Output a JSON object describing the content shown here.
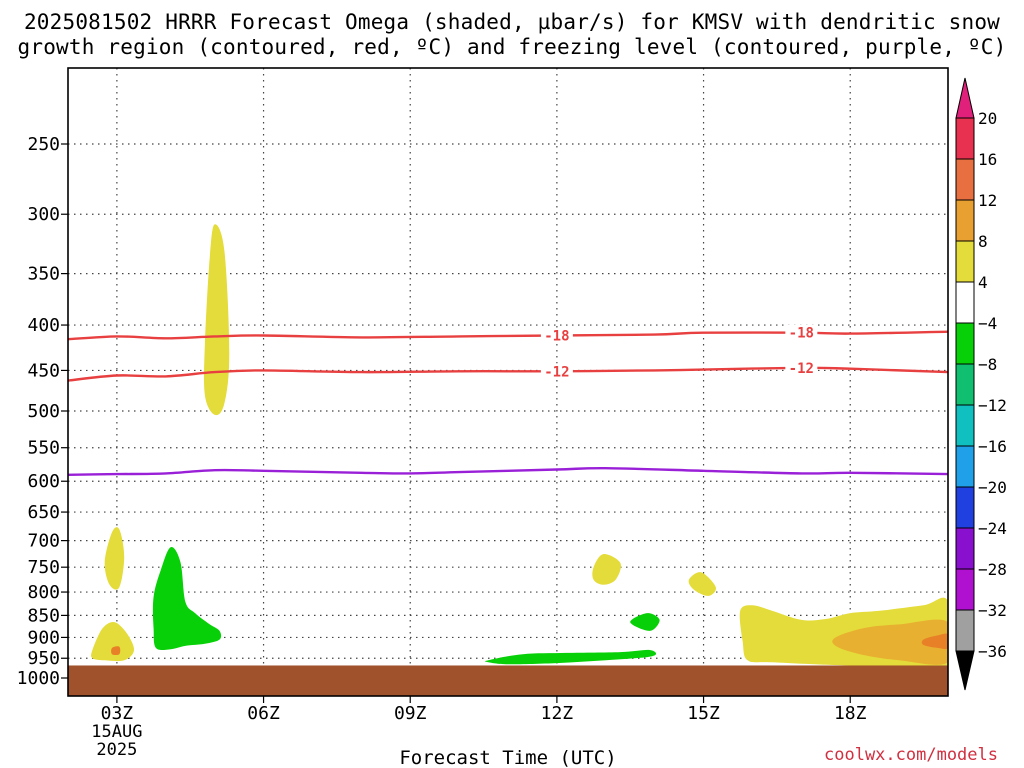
{
  "title": "2025081502 HRRR Forecast Omega (shaded, µbar/s) for KMSV with dendritic snow\ngrowth region (contoured, red, ºC) and freezing level (contoured, purple, ºC)",
  "credit": "coolwx.com/models",
  "chart_data": {
    "type": "time-height contour",
    "xlabel": "Forecast Time (UTC)",
    "x_ticks": [
      "03Z",
      "06Z",
      "09Z",
      "12Z",
      "15Z",
      "18Z"
    ],
    "x_tick_hours": [
      3,
      6,
      9,
      12,
      15,
      18
    ],
    "date_label": [
      "15AUG",
      "2025"
    ],
    "xlim": [
      2,
      20
    ],
    "y_ticks": [
      250,
      300,
      350,
      400,
      450,
      500,
      550,
      600,
      650,
      700,
      750,
      800,
      850,
      900,
      950,
      1000
    ],
    "ylim": [
      1020,
      200
    ],
    "y_scale": "log-pressure",
    "grid": "dotted",
    "contours": [
      {
        "name": "dendritic -18",
        "label": "-18",
        "color": "#e84040",
        "points": [
          [
            2,
            415
          ],
          [
            3,
            412
          ],
          [
            4,
            414
          ],
          [
            5,
            412
          ],
          [
            6,
            411
          ],
          [
            8,
            413
          ],
          [
            10,
            412
          ],
          [
            12,
            411
          ],
          [
            14,
            410
          ],
          [
            15,
            408
          ],
          [
            17,
            408
          ],
          [
            18,
            409
          ],
          [
            20,
            407
          ]
        ]
      },
      {
        "name": "dendritic -12",
        "label": "-12",
        "color": "#e84040",
        "points": [
          [
            2,
            462
          ],
          [
            3,
            456
          ],
          [
            4,
            457
          ],
          [
            5,
            452
          ],
          [
            6,
            450
          ],
          [
            8,
            452
          ],
          [
            10,
            451
          ],
          [
            12,
            451
          ],
          [
            14,
            450
          ],
          [
            15,
            449
          ],
          [
            17,
            447
          ],
          [
            18,
            448
          ],
          [
            20,
            452
          ]
        ]
      },
      {
        "name": "freezing level",
        "label": "",
        "color": "#9a20d8",
        "points": [
          [
            2,
            590
          ],
          [
            3,
            589
          ],
          [
            4,
            588
          ],
          [
            5,
            583
          ],
          [
            6,
            584
          ],
          [
            8,
            587
          ],
          [
            9,
            588
          ],
          [
            10,
            586
          ],
          [
            12,
            582
          ],
          [
            13,
            580
          ],
          [
            15,
            584
          ],
          [
            17,
            588
          ],
          [
            18,
            587
          ],
          [
            20,
            589
          ]
        ]
      }
    ],
    "contour_labels": [
      {
        "label": "-18",
        "x": 12.0,
        "p": 411
      },
      {
        "label": "-18",
        "x": 17.0,
        "p": 408
      },
      {
        "label": "-12",
        "x": 12.0,
        "p": 451
      },
      {
        "label": "-12",
        "x": 17.0,
        "p": 447
      }
    ],
    "omega_regions": [
      {
        "level": "4 to 8",
        "color": "#e4dc3a",
        "points": [
          [
            4.8,
            420
          ],
          [
            4.9,
            335
          ],
          [
            5.0,
            308
          ],
          [
            5.2,
            330
          ],
          [
            5.3,
            430
          ],
          [
            5.2,
            490
          ],
          [
            5.0,
            505
          ],
          [
            4.8,
            480
          ]
        ]
      },
      {
        "level": "4 to 8",
        "color": "#e4dc3a",
        "points": [
          [
            2.75,
            740
          ],
          [
            2.9,
            685
          ],
          [
            3.05,
            680
          ],
          [
            3.15,
            730
          ],
          [
            3.05,
            790
          ],
          [
            2.85,
            785
          ]
        ]
      },
      {
        "level": "4 to 8",
        "color": "#e4dc3a",
        "points": [
          [
            2.5,
            930
          ],
          [
            2.7,
            880
          ],
          [
            2.95,
            865
          ],
          [
            3.2,
            890
          ],
          [
            3.35,
            930
          ],
          [
            3.15,
            955
          ],
          [
            2.75,
            955
          ],
          [
            2.5,
            950
          ]
        ]
      },
      {
        "level": "4 to 8",
        "color": "#e4dc3a",
        "points": [
          [
            12.75,
            750
          ],
          [
            12.95,
            725
          ],
          [
            13.3,
            742
          ],
          [
            13.2,
            775
          ],
          [
            12.95,
            785
          ],
          [
            12.75,
            775
          ]
        ]
      },
      {
        "level": "4 to 8",
        "color": "#e4dc3a",
        "points": [
          [
            14.7,
            775
          ],
          [
            14.95,
            760
          ],
          [
            15.25,
            790
          ],
          [
            15.1,
            808
          ],
          [
            14.8,
            795
          ]
        ]
      },
      {
        "level": "4 to 8",
        "color": "#e4dc3a",
        "points": [
          [
            15.75,
            840
          ],
          [
            16.0,
            828
          ],
          [
            16.4,
            840
          ],
          [
            17.0,
            860
          ],
          [
            17.5,
            858
          ],
          [
            18.0,
            845
          ],
          [
            18.6,
            840
          ],
          [
            19.5,
            828
          ],
          [
            20,
            820
          ],
          [
            20,
            968
          ],
          [
            18.0,
            968
          ],
          [
            16.4,
            960
          ],
          [
            15.9,
            955
          ],
          [
            15.8,
            910
          ]
        ]
      },
      {
        "level": "8 to 12",
        "color": "#e8b030",
        "points": [
          [
            17.7,
            900
          ],
          [
            18.3,
            878
          ],
          [
            19.0,
            870
          ],
          [
            20,
            865
          ],
          [
            20,
            960
          ],
          [
            19.0,
            955
          ],
          [
            18.2,
            940
          ],
          [
            17.7,
            920
          ]
        ]
      },
      {
        "level": "12 to 16",
        "color": "#e88028",
        "points": [
          [
            19.5,
            905
          ],
          [
            19.8,
            895
          ],
          [
            20,
            893
          ],
          [
            20,
            925
          ],
          [
            19.8,
            925
          ],
          [
            19.5,
            918
          ]
        ]
      },
      {
        "level": "12 to 16",
        "color": "#e88028",
        "points": [
          [
            2.9,
            925
          ],
          [
            3.05,
            922
          ],
          [
            3.05,
            940
          ],
          [
            2.9,
            940
          ]
        ]
      },
      {
        "level": "-8 to -4",
        "color": "#08d008",
        "points": [
          [
            3.75,
            810
          ],
          [
            3.9,
            755
          ],
          [
            4.1,
            712
          ],
          [
            4.3,
            740
          ],
          [
            4.4,
            820
          ],
          [
            4.6,
            845
          ],
          [
            4.9,
            870
          ],
          [
            5.1,
            885
          ],
          [
            5.1,
            905
          ],
          [
            4.8,
            915
          ],
          [
            4.4,
            920
          ],
          [
            4.1,
            928
          ],
          [
            3.8,
            925
          ],
          [
            3.75,
            880
          ]
        ]
      },
      {
        "level": "-8 to -4",
        "color": "#08d008",
        "points": [
          [
            13.5,
            865
          ],
          [
            13.85,
            845
          ],
          [
            14.1,
            860
          ],
          [
            13.9,
            885
          ]
        ]
      },
      {
        "level": "-8 to -4",
        "color": "#08d008",
        "points": [
          [
            10.6,
            955
          ],
          [
            11.3,
            940
          ],
          [
            12.2,
            937
          ],
          [
            13.3,
            935
          ],
          [
            13.9,
            930
          ],
          [
            13.95,
            945
          ],
          [
            13.0,
            955
          ],
          [
            12.0,
            962
          ],
          [
            11.0,
            965
          ],
          [
            10.6,
            960
          ]
        ]
      }
    ],
    "ground": {
      "color": "#a0522d",
      "top_p": 968
    },
    "colorbar": {
      "ticks": [
        "20",
        "16",
        "12",
        "8",
        "4",
        "−4",
        "−8",
        "−12",
        "−16",
        "−20",
        "−24",
        "−28",
        "−32",
        "−36"
      ],
      "bands": [
        "#e83050",
        "#e87040",
        "#e8a030",
        "#e4dc3a",
        "#ffffff",
        "#08d008",
        "#10c070",
        "#10c0c0",
        "#20a0e8",
        "#2040e0",
        "#8a10d0",
        "#b010d0",
        "#a0a0a0"
      ],
      "top_arrow": "#e0207a",
      "bottom_arrow": "#000000"
    }
  }
}
